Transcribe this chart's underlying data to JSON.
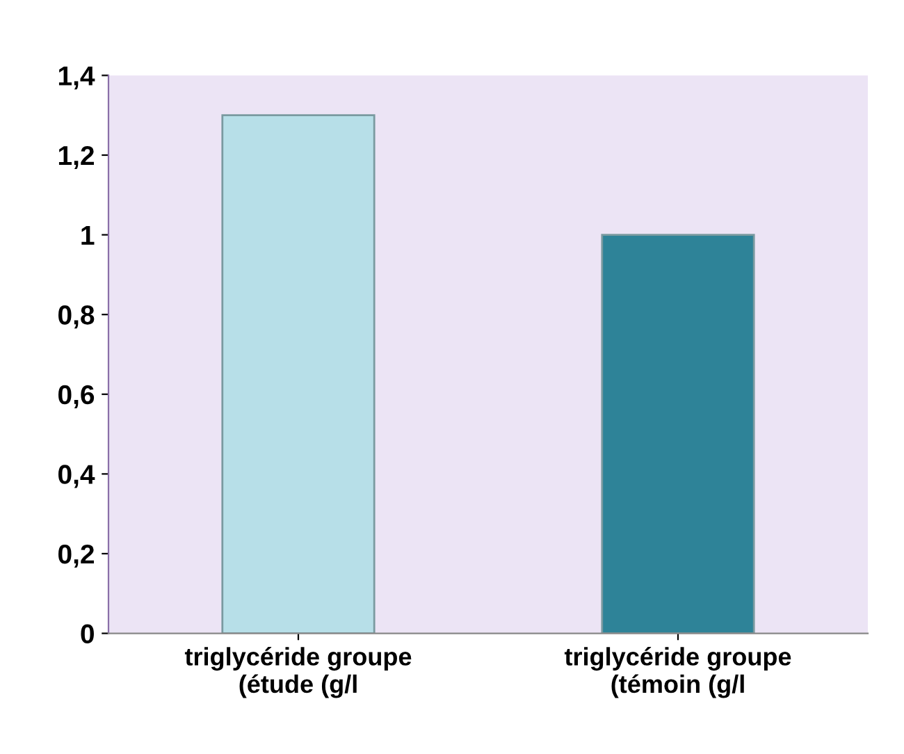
{
  "chart_data": {
    "type": "bar",
    "categories": [
      "triglycéride groupe\n(étude (g/l",
      "triglycéride groupe\n(témoin (g/l"
    ],
    "values": [
      1.3,
      1.0
    ],
    "colors": [
      "#b7dfe8",
      "#2e8398"
    ],
    "ylim": [
      0,
      1.4
    ],
    "yticks": [
      0,
      {
        "value": 0.2,
        "label": "0,2"
      },
      {
        "value": 0.4,
        "label": "0,4"
      },
      {
        "value": 0.6,
        "label": "0,6"
      },
      {
        "value": 0.8,
        "label": "0,8"
      },
      1,
      {
        "value": 1.2,
        "label": "1,2"
      },
      {
        "value": 1.4,
        "label": "1,4"
      }
    ],
    "grid": false,
    "legend": false
  }
}
